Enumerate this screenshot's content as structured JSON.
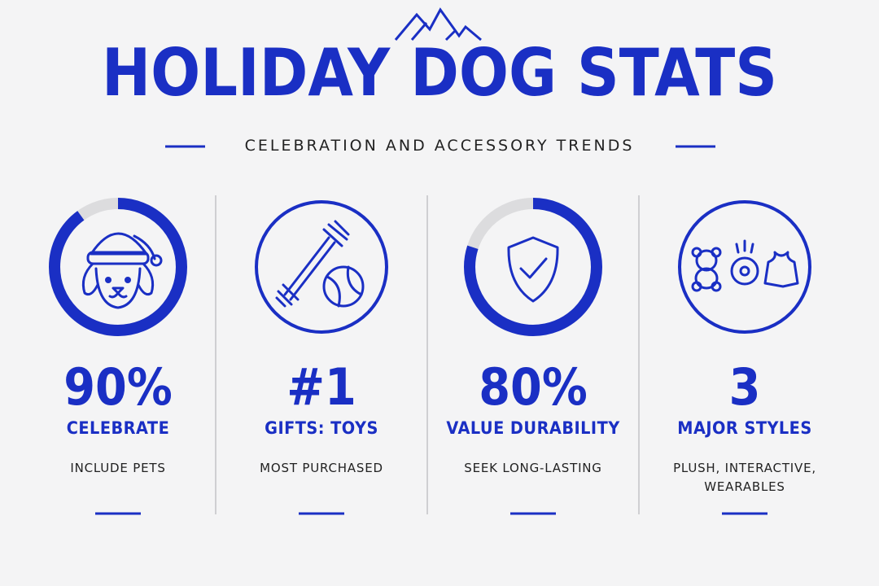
{
  "header": {
    "title": "HOLIDAY DOG STATS",
    "subtitle": "CELEBRATION AND ACCESSORY TRENDS"
  },
  "stats": [
    {
      "stat": {
        "value": 90,
        "label": "90%"
      },
      "heading": "CELEBRATE",
      "description": "INCLUDE PETS"
    },
    {
      "stat": "#1",
      "heading": "GIFTS: TOYS",
      "description": "MOST PURCHASED"
    },
    {
      "stat": {
        "value": 80,
        "label": "80%"
      },
      "heading": "VALUE DURABILITY",
      "description": "SEEK LONG-LASTING"
    },
    {
      "stat": 3,
      "heading": "MAJOR STYLES",
      "description": "PLUSH, INTERACTIVE, WEARABLES"
    }
  ]
}
